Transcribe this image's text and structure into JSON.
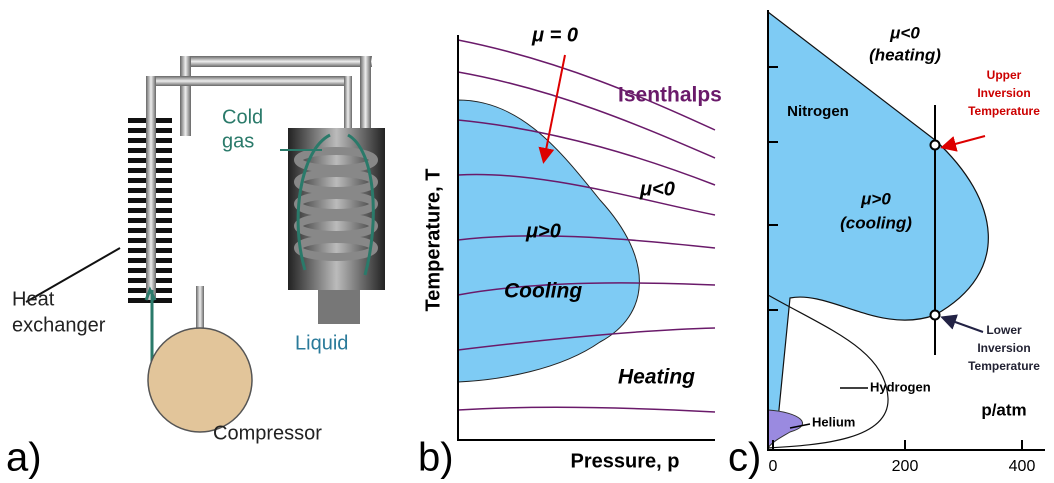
{
  "panel_a": {
    "label": "a)",
    "cold_gas": [
      "Cold",
      "gas"
    ],
    "heat_exchanger": [
      "Heat",
      "exchanger"
    ],
    "liquid": "Liquid",
    "compressor": "Compressor"
  },
  "panel_b": {
    "label": "b)",
    "mu_zero": "μ = 0",
    "isenthalps": "Isenthalps",
    "mu_negative": "μ<0",
    "mu_positive": "μ>0",
    "cooling": "Cooling",
    "heating": "Heating",
    "y_axis": "Temperature, T",
    "x_axis": "Pressure, p"
  },
  "panel_c": {
    "label": "c)",
    "mu_negative": [
      "μ<0",
      "(heating)"
    ],
    "nitrogen": "Nitrogen",
    "mu_positive": [
      "μ>0",
      "(cooling)"
    ],
    "upper_inversion": [
      "Upper",
      "Inversion",
      "Temperature"
    ],
    "lower_inversion": [
      "Lower",
      "Inversion",
      "Temperature"
    ],
    "hydrogen": "Hydrogen",
    "helium": "Helium",
    "x_axis": "p/atm",
    "x_ticks": [
      0,
      200,
      400
    ]
  }
}
